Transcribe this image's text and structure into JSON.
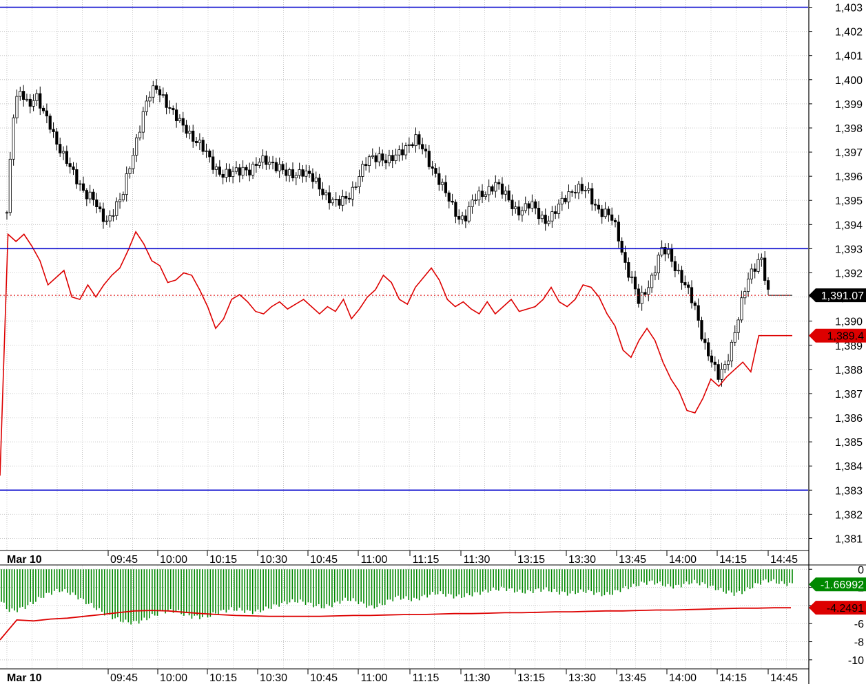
{
  "chart_data": [
    {
      "type": "candlestick",
      "panel": "price",
      "y_axis_side": "right",
      "ylim": [
        1380.5,
        1403.3
      ],
      "y_ticks": [
        "1,381",
        "1,382",
        "1,383",
        "1,384",
        "1,385",
        "1,386",
        "1,387",
        "1,388",
        "1,389",
        "1,390",
        "1,391",
        "1,392",
        "1,393",
        "1,394",
        "1,395",
        "1,396",
        "1,397",
        "1,398",
        "1,399",
        "1,400",
        "1,401",
        "1,402",
        "1,403"
      ],
      "x_date_label": "Mar 10",
      "x_ticks": [
        "09:45",
        "10:00",
        "10:15",
        "10:30",
        "10:45",
        "11:00",
        "11:15",
        "11:30",
        "13:15",
        "13:30",
        "13:45",
        "14:00",
        "14:15",
        "14:45"
      ],
      "horizontal_lines": [
        1403.0,
        1393.0,
        1383.0
      ],
      "last_price": 1391.07,
      "last_price_label": "1,391.07",
      "close_path": [
        1394.5,
        1398.8,
        1399.6,
        1399.0,
        1399.3,
        1398.6,
        1398.2,
        1397.4,
        1396.7,
        1396.2,
        1395.8,
        1395.3,
        1395.0,
        1394.4,
        1394.2,
        1394.7,
        1395.0,
        1396.3,
        1397.5,
        1398.6,
        1399.4,
        1399.7,
        1399.2,
        1398.6,
        1398.2,
        1398.0,
        1397.6,
        1397.2,
        1396.8,
        1396.4,
        1396.1,
        1396.0,
        1396.2,
        1396.4,
        1396.2,
        1396.5,
        1396.7,
        1396.6,
        1396.3,
        1396.0,
        1396.1,
        1396.3,
        1396.0,
        1395.7,
        1395.4,
        1395.1,
        1394.8,
        1395.0,
        1395.4,
        1396.0,
        1396.5,
        1396.8,
        1396.9,
        1396.6,
        1396.7,
        1397.1,
        1397.4,
        1397.5,
        1397.0,
        1396.5,
        1396.0,
        1395.3,
        1394.7,
        1394.3,
        1394.4,
        1395.0,
        1395.2,
        1395.5,
        1395.7,
        1395.3,
        1395.0,
        1394.6,
        1394.6,
        1394.8,
        1394.5,
        1394.2,
        1394.3,
        1394.8,
        1395.3,
        1395.5,
        1395.4,
        1395.3,
        1394.8,
        1394.5,
        1394.3,
        1393.7,
        1392.5,
        1391.7,
        1390.7,
        1391.3,
        1392.0,
        1392.9,
        1392.8,
        1392.3,
        1391.8,
        1391.1,
        1390.3,
        1389.2,
        1388.5,
        1387.6,
        1388.1,
        1389.2,
        1390.4,
        1391.5,
        1392.2,
        1392.8,
        1391.1
      ],
      "overlay_line": {
        "color": "#dd0000",
        "label": "1,389.4",
        "value": 1389.4,
        "values": [
          1383.6,
          1393.6,
          1393.3,
          1393.6,
          1393.1,
          1392.5,
          1391.5,
          1391.8,
          1392.1,
          1391.0,
          1390.9,
          1391.5,
          1391.0,
          1391.5,
          1391.9,
          1392.2,
          1392.9,
          1393.7,
          1393.2,
          1392.5,
          1392.3,
          1391.6,
          1391.7,
          1392.0,
          1391.9,
          1391.3,
          1390.6,
          1389.7,
          1390.1,
          1390.9,
          1391.1,
          1390.8,
          1390.4,
          1390.3,
          1390.6,
          1390.8,
          1390.5,
          1390.7,
          1390.9,
          1390.6,
          1390.3,
          1390.6,
          1390.4,
          1390.9,
          1390.1,
          1390.5,
          1391.0,
          1391.3,
          1391.9,
          1391.6,
          1390.9,
          1390.7,
          1391.4,
          1391.8,
          1392.2,
          1391.7,
          1390.9,
          1390.6,
          1390.8,
          1390.5,
          1390.3,
          1390.8,
          1390.3,
          1390.6,
          1390.9,
          1390.4,
          1390.5,
          1390.6,
          1390.9,
          1391.4,
          1390.8,
          1390.6,
          1390.9,
          1391.5,
          1391.4,
          1391.0,
          1390.3,
          1389.8,
          1388.8,
          1388.5,
          1389.2,
          1389.7,
          1389.2,
          1388.3,
          1387.6,
          1387.1,
          1386.3,
          1386.2,
          1386.8,
          1387.6,
          1387.3,
          1387.7,
          1388.0,
          1388.3,
          1387.9,
          1389.4,
          1389.4
        ],
        "style": "step"
      }
    },
    {
      "type": "histogram",
      "panel": "oscillator",
      "y_axis_side": "right",
      "ylim": [
        -11,
        0.4
      ],
      "y_ticks": [
        "0",
        "-2",
        "-4",
        "-6",
        "-8",
        "-10"
      ],
      "x_date_label": "Mar 10",
      "x_ticks": [
        "09:45",
        "10:00",
        "10:15",
        "10:30",
        "10:45",
        "11:00",
        "11:15",
        "11:30",
        "13:15",
        "13:30",
        "13:45",
        "14:00",
        "14:15",
        "14:45"
      ],
      "histogram_color": "#008800",
      "histogram_last_label": "-1.66992",
      "histogram_values": [
        -3.6,
        -4.6,
        -4.5,
        -4.1,
        -3.6,
        -3.0,
        -2.6,
        -2.3,
        -2.5,
        -2.9,
        -3.5,
        -4.0,
        -4.6,
        -5.1,
        -5.5,
        -5.8,
        -5.9,
        -5.7,
        -5.3,
        -4.9,
        -4.6,
        -4.6,
        -4.9,
        -5.2,
        -5.3,
        -5.2,
        -4.9,
        -4.6,
        -4.4,
        -4.5,
        -4.7,
        -4.7,
        -4.4,
        -4.1,
        -3.8,
        -3.6,
        -3.5,
        -3.7,
        -4.0,
        -4.2,
        -4.0,
        -3.6,
        -3.3,
        -3.5,
        -3.9,
        -4.2,
        -4.0,
        -3.5,
        -3.1,
        -3.2,
        -3.4,
        -3.1,
        -2.8,
        -2.6,
        -2.8,
        -3.0,
        -3.0,
        -2.8,
        -2.6,
        -2.4,
        -2.2,
        -2.1,
        -2.3,
        -2.5,
        -2.5,
        -2.3,
        -2.2,
        -2.4,
        -2.6,
        -2.7,
        -2.5,
        -2.4,
        -2.6,
        -2.8,
        -2.7,
        -2.3,
        -2.0,
        -1.8,
        -1.5,
        -1.4,
        -1.6,
        -1.9,
        -1.9,
        -1.6,
        -1.4,
        -1.6,
        -1.9,
        -2.2,
        -2.5,
        -2.7,
        -2.5,
        -2.0,
        -1.5,
        -1.2,
        -1.4,
        -1.6,
        -1.67
      ],
      "signal_line": {
        "color": "#dd0000",
        "label": "-4.2491",
        "value": -4.2491,
        "values": [
          -7.8,
          -5.6,
          -5.7,
          -5.5,
          -5.4,
          -5.2,
          -5.0,
          -4.8,
          -4.6,
          -4.55,
          -4.6,
          -4.75,
          -4.9,
          -5.0,
          -5.1,
          -5.15,
          -5.2,
          -5.2,
          -5.2,
          -5.2,
          -5.15,
          -5.1,
          -5.1,
          -5.05,
          -5.0,
          -5.0,
          -4.95,
          -4.9,
          -4.9,
          -4.85,
          -4.8,
          -4.8,
          -4.75,
          -4.7,
          -4.7,
          -4.65,
          -4.6,
          -4.6,
          -4.55,
          -4.5,
          -4.5,
          -4.45,
          -4.4,
          -4.35,
          -4.3,
          -4.3,
          -4.25,
          -4.25
        ]
      }
    }
  ]
}
